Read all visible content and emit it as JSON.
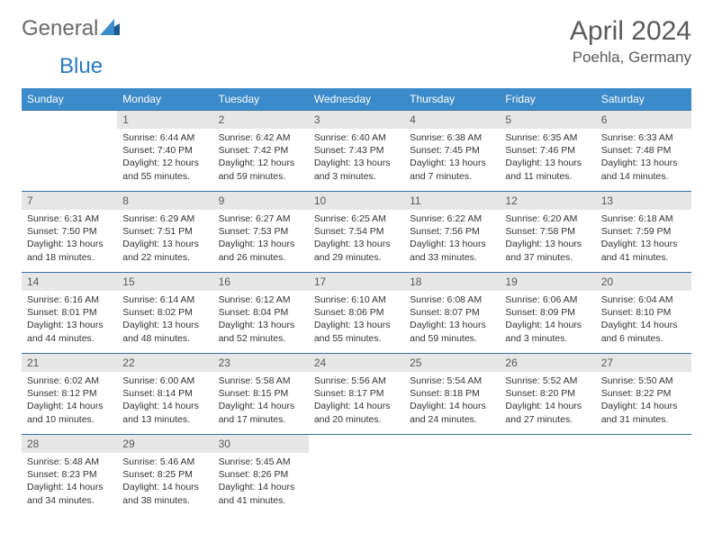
{
  "logo": {
    "text_general": "General",
    "text_blue": "Blue"
  },
  "title": "April 2024",
  "location": "Poehla, Germany",
  "colors": {
    "header_bg": "#3b8bca",
    "header_text": "#ffffff",
    "daynum_bg": "#e6e6e6",
    "cell_border": "#3b6fa0",
    "body_text": "#333333",
    "title_text": "#5a5a5a"
  },
  "weekdays": [
    "Sunday",
    "Monday",
    "Tuesday",
    "Wednesday",
    "Thursday",
    "Friday",
    "Saturday"
  ],
  "weeks": [
    [
      null,
      {
        "n": "1",
        "sr": "Sunrise: 6:44 AM",
        "ss": "Sunset: 7:40 PM",
        "d1": "Daylight: 12 hours",
        "d2": "and 55 minutes."
      },
      {
        "n": "2",
        "sr": "Sunrise: 6:42 AM",
        "ss": "Sunset: 7:42 PM",
        "d1": "Daylight: 12 hours",
        "d2": "and 59 minutes."
      },
      {
        "n": "3",
        "sr": "Sunrise: 6:40 AM",
        "ss": "Sunset: 7:43 PM",
        "d1": "Daylight: 13 hours",
        "d2": "and 3 minutes."
      },
      {
        "n": "4",
        "sr": "Sunrise: 6:38 AM",
        "ss": "Sunset: 7:45 PM",
        "d1": "Daylight: 13 hours",
        "d2": "and 7 minutes."
      },
      {
        "n": "5",
        "sr": "Sunrise: 6:35 AM",
        "ss": "Sunset: 7:46 PM",
        "d1": "Daylight: 13 hours",
        "d2": "and 11 minutes."
      },
      {
        "n": "6",
        "sr": "Sunrise: 6:33 AM",
        "ss": "Sunset: 7:48 PM",
        "d1": "Daylight: 13 hours",
        "d2": "and 14 minutes."
      }
    ],
    [
      {
        "n": "7",
        "sr": "Sunrise: 6:31 AM",
        "ss": "Sunset: 7:50 PM",
        "d1": "Daylight: 13 hours",
        "d2": "and 18 minutes."
      },
      {
        "n": "8",
        "sr": "Sunrise: 6:29 AM",
        "ss": "Sunset: 7:51 PM",
        "d1": "Daylight: 13 hours",
        "d2": "and 22 minutes."
      },
      {
        "n": "9",
        "sr": "Sunrise: 6:27 AM",
        "ss": "Sunset: 7:53 PM",
        "d1": "Daylight: 13 hours",
        "d2": "and 26 minutes."
      },
      {
        "n": "10",
        "sr": "Sunrise: 6:25 AM",
        "ss": "Sunset: 7:54 PM",
        "d1": "Daylight: 13 hours",
        "d2": "and 29 minutes."
      },
      {
        "n": "11",
        "sr": "Sunrise: 6:22 AM",
        "ss": "Sunset: 7:56 PM",
        "d1": "Daylight: 13 hours",
        "d2": "and 33 minutes."
      },
      {
        "n": "12",
        "sr": "Sunrise: 6:20 AM",
        "ss": "Sunset: 7:58 PM",
        "d1": "Daylight: 13 hours",
        "d2": "and 37 minutes."
      },
      {
        "n": "13",
        "sr": "Sunrise: 6:18 AM",
        "ss": "Sunset: 7:59 PM",
        "d1": "Daylight: 13 hours",
        "d2": "and 41 minutes."
      }
    ],
    [
      {
        "n": "14",
        "sr": "Sunrise: 6:16 AM",
        "ss": "Sunset: 8:01 PM",
        "d1": "Daylight: 13 hours",
        "d2": "and 44 minutes."
      },
      {
        "n": "15",
        "sr": "Sunrise: 6:14 AM",
        "ss": "Sunset: 8:02 PM",
        "d1": "Daylight: 13 hours",
        "d2": "and 48 minutes."
      },
      {
        "n": "16",
        "sr": "Sunrise: 6:12 AM",
        "ss": "Sunset: 8:04 PM",
        "d1": "Daylight: 13 hours",
        "d2": "and 52 minutes."
      },
      {
        "n": "17",
        "sr": "Sunrise: 6:10 AM",
        "ss": "Sunset: 8:06 PM",
        "d1": "Daylight: 13 hours",
        "d2": "and 55 minutes."
      },
      {
        "n": "18",
        "sr": "Sunrise: 6:08 AM",
        "ss": "Sunset: 8:07 PM",
        "d1": "Daylight: 13 hours",
        "d2": "and 59 minutes."
      },
      {
        "n": "19",
        "sr": "Sunrise: 6:06 AM",
        "ss": "Sunset: 8:09 PM",
        "d1": "Daylight: 14 hours",
        "d2": "and 3 minutes."
      },
      {
        "n": "20",
        "sr": "Sunrise: 6:04 AM",
        "ss": "Sunset: 8:10 PM",
        "d1": "Daylight: 14 hours",
        "d2": "and 6 minutes."
      }
    ],
    [
      {
        "n": "21",
        "sr": "Sunrise: 6:02 AM",
        "ss": "Sunset: 8:12 PM",
        "d1": "Daylight: 14 hours",
        "d2": "and 10 minutes."
      },
      {
        "n": "22",
        "sr": "Sunrise: 6:00 AM",
        "ss": "Sunset: 8:14 PM",
        "d1": "Daylight: 14 hours",
        "d2": "and 13 minutes."
      },
      {
        "n": "23",
        "sr": "Sunrise: 5:58 AM",
        "ss": "Sunset: 8:15 PM",
        "d1": "Daylight: 14 hours",
        "d2": "and 17 minutes."
      },
      {
        "n": "24",
        "sr": "Sunrise: 5:56 AM",
        "ss": "Sunset: 8:17 PM",
        "d1": "Daylight: 14 hours",
        "d2": "and 20 minutes."
      },
      {
        "n": "25",
        "sr": "Sunrise: 5:54 AM",
        "ss": "Sunset: 8:18 PM",
        "d1": "Daylight: 14 hours",
        "d2": "and 24 minutes."
      },
      {
        "n": "26",
        "sr": "Sunrise: 5:52 AM",
        "ss": "Sunset: 8:20 PM",
        "d1": "Daylight: 14 hours",
        "d2": "and 27 minutes."
      },
      {
        "n": "27",
        "sr": "Sunrise: 5:50 AM",
        "ss": "Sunset: 8:22 PM",
        "d1": "Daylight: 14 hours",
        "d2": "and 31 minutes."
      }
    ],
    [
      {
        "n": "28",
        "sr": "Sunrise: 5:48 AM",
        "ss": "Sunset: 8:23 PM",
        "d1": "Daylight: 14 hours",
        "d2": "and 34 minutes."
      },
      {
        "n": "29",
        "sr": "Sunrise: 5:46 AM",
        "ss": "Sunset: 8:25 PM",
        "d1": "Daylight: 14 hours",
        "d2": "and 38 minutes."
      },
      {
        "n": "30",
        "sr": "Sunrise: 5:45 AM",
        "ss": "Sunset: 8:26 PM",
        "d1": "Daylight: 14 hours",
        "d2": "and 41 minutes."
      },
      null,
      null,
      null,
      null
    ]
  ]
}
